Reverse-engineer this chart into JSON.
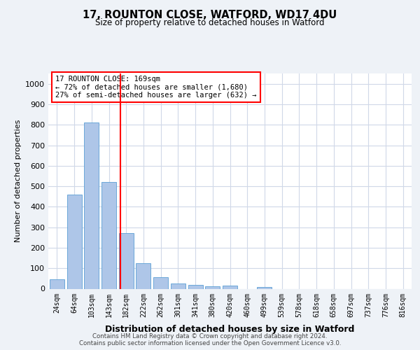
{
  "title1": "17, ROUNTON CLOSE, WATFORD, WD17 4DU",
  "title2": "Size of property relative to detached houses in Watford",
  "xlabel": "Distribution of detached houses by size in Watford",
  "ylabel": "Number of detached properties",
  "categories": [
    "24sqm",
    "64sqm",
    "103sqm",
    "143sqm",
    "182sqm",
    "222sqm",
    "262sqm",
    "301sqm",
    "341sqm",
    "380sqm",
    "420sqm",
    "460sqm",
    "499sqm",
    "539sqm",
    "578sqm",
    "618sqm",
    "658sqm",
    "697sqm",
    "737sqm",
    "776sqm",
    "816sqm"
  ],
  "values": [
    45,
    460,
    810,
    520,
    270,
    125,
    58,
    25,
    20,
    12,
    15,
    0,
    10,
    0,
    0,
    0,
    0,
    0,
    0,
    0,
    0
  ],
  "bar_color": "#aec6e8",
  "bar_edge_color": "#5a9fd4",
  "annotation_line1": "17 ROUNTON CLOSE: 169sqm",
  "annotation_line2": "← 72% of detached houses are smaller (1,680)",
  "annotation_line3": "27% of semi-detached houses are larger (632) →",
  "ylim": [
    0,
    1050
  ],
  "yticks": [
    0,
    100,
    200,
    300,
    400,
    500,
    600,
    700,
    800,
    900,
    1000
  ],
  "footer1": "Contains HM Land Registry data © Crown copyright and database right 2024.",
  "footer2": "Contains public sector information licensed under the Open Government Licence v3.0.",
  "bg_color": "#eef2f7",
  "plot_bg_color": "#ffffff",
  "grid_color": "#d0d8e8"
}
